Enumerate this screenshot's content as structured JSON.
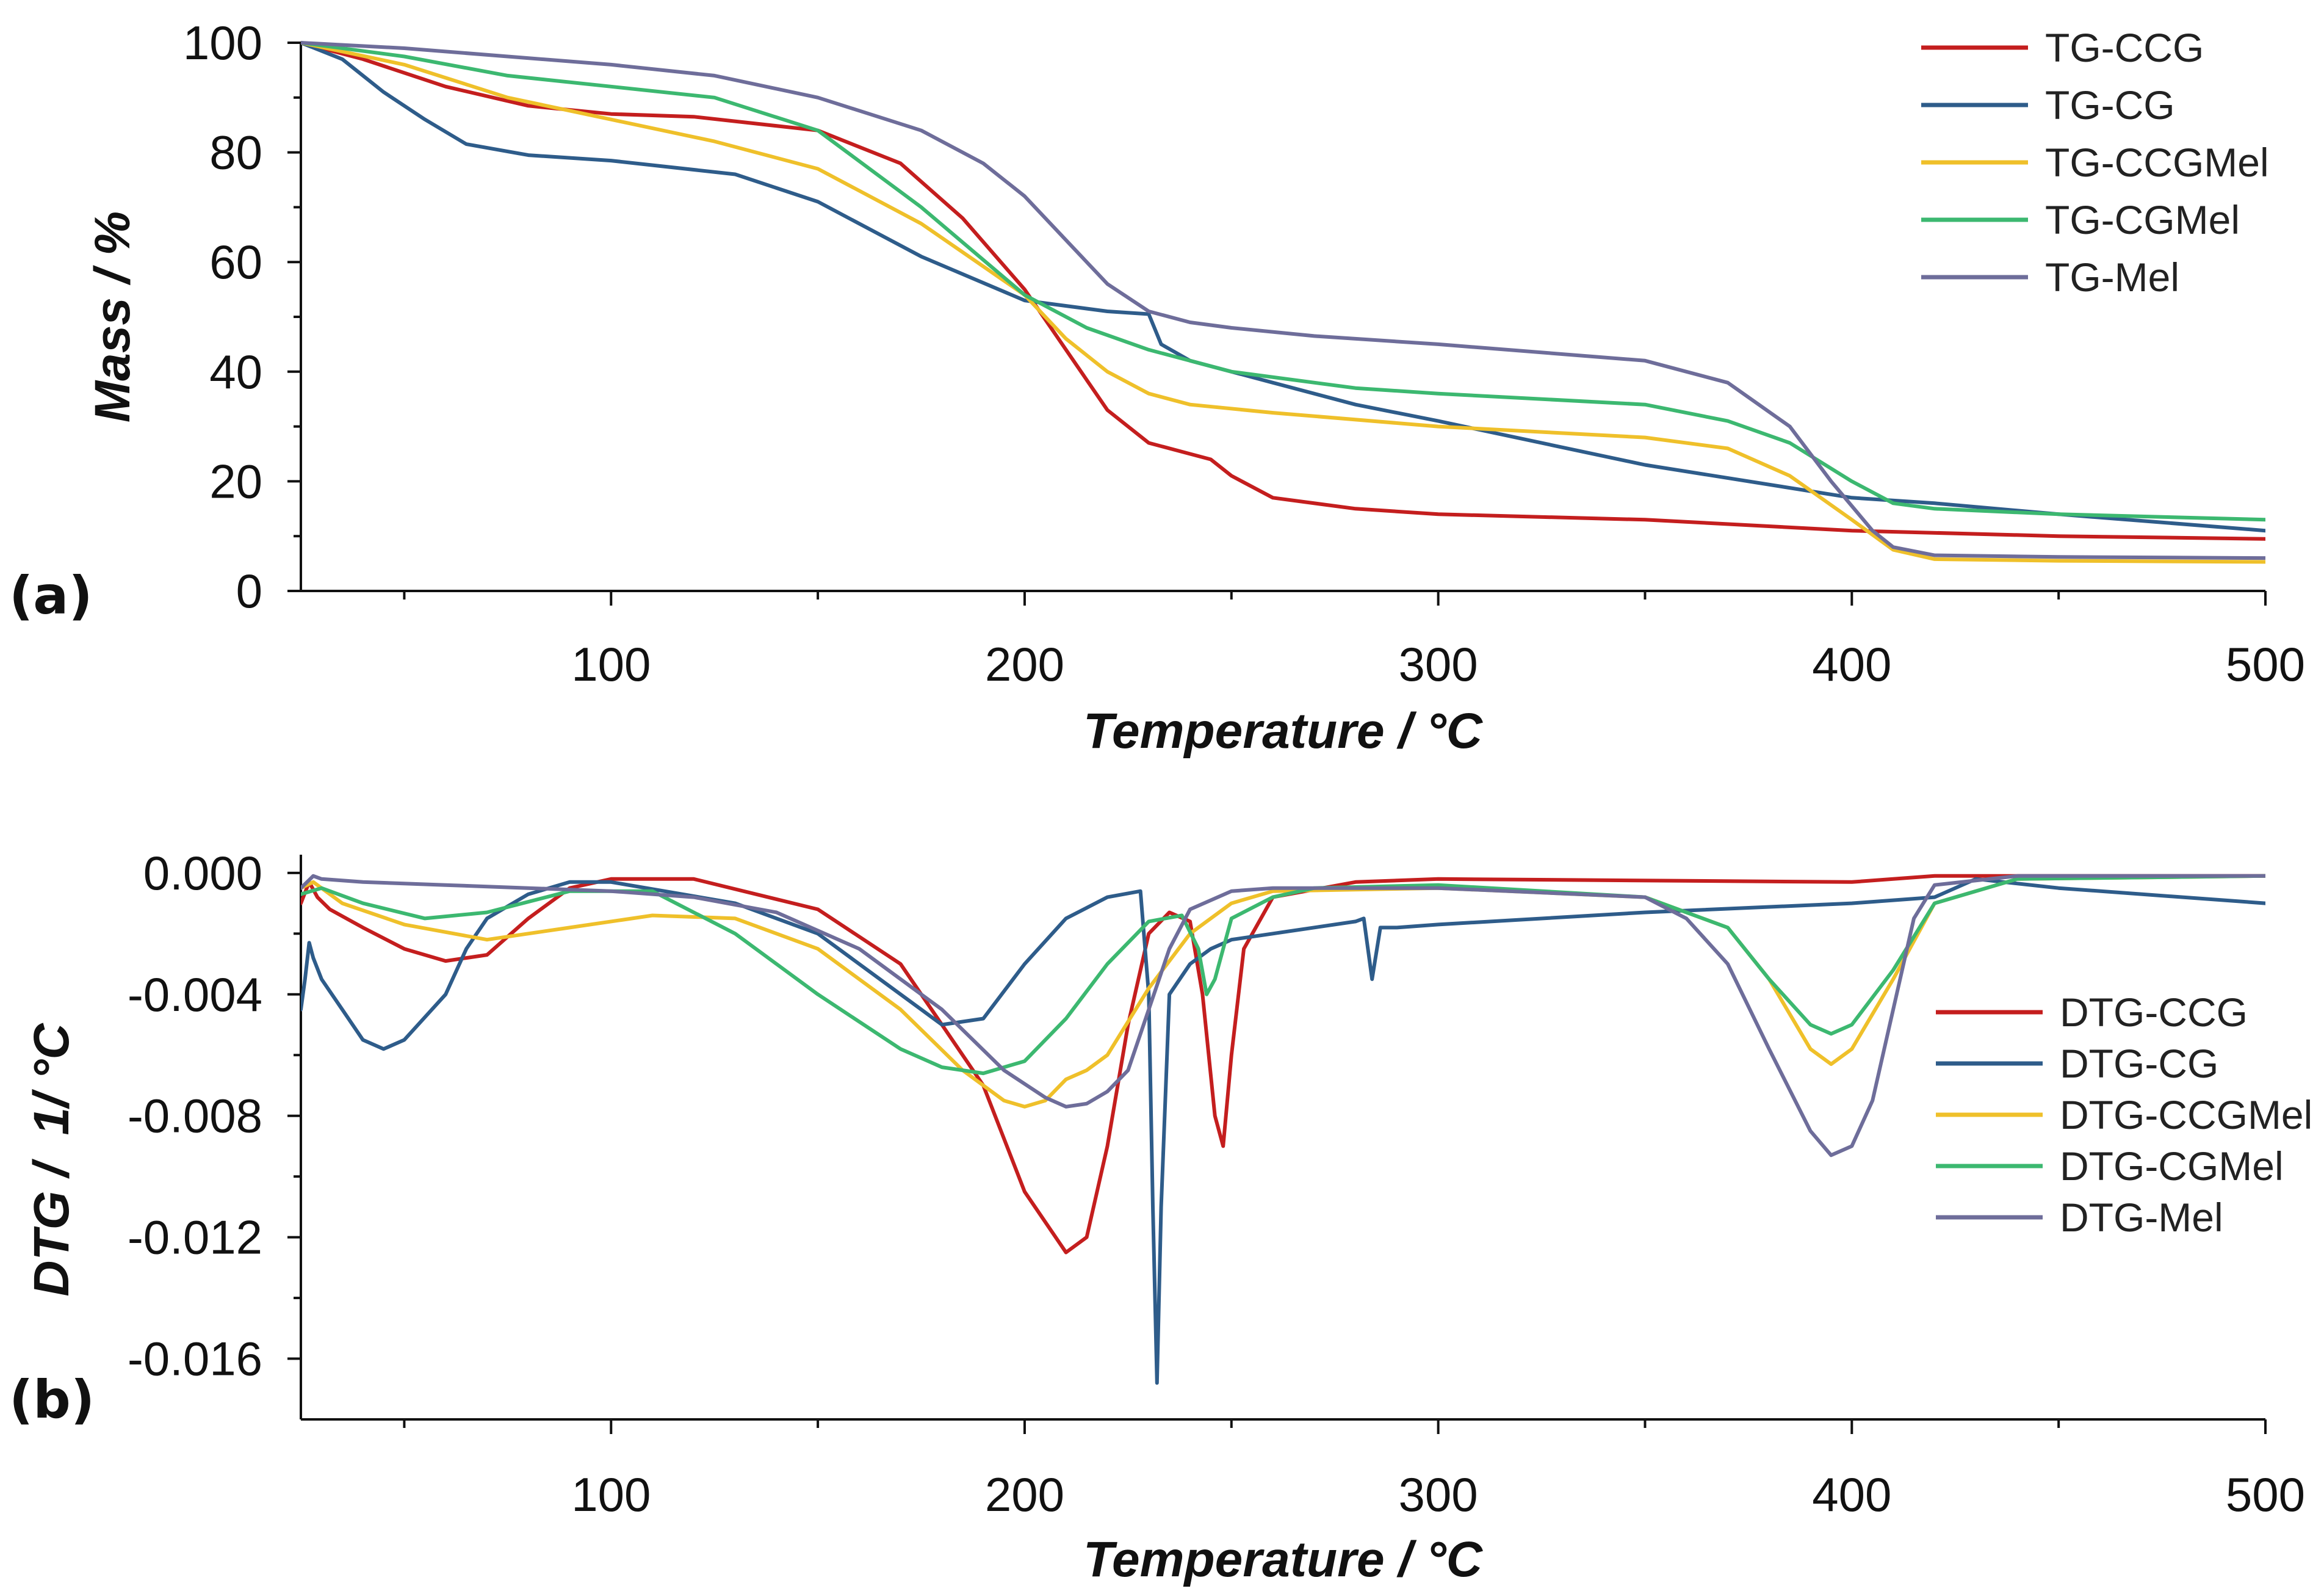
{
  "chart_data": [
    {
      "type": "line",
      "panel_label": "(a)",
      "xlabel": "Temperature / °C",
      "ylabel": "Mass / %",
      "xlim": [
        25,
        500
      ],
      "ylim": [
        0,
        100
      ],
      "xticks": [
        100,
        200,
        300,
        400,
        500
      ],
      "yticks": [
        0,
        20,
        40,
        60,
        80,
        100
      ],
      "legend_position": "top-right",
      "series": [
        {
          "name": "TG-CCG",
          "color": "#c41e1e",
          "x": [
            25,
            40,
            60,
            80,
            100,
            120,
            150,
            170,
            185,
            200,
            210,
            220,
            230,
            240,
            245,
            250,
            260,
            280,
            300,
            350,
            400,
            450,
            500
          ],
          "y": [
            100,
            97,
            92,
            88.5,
            87,
            86.5,
            84,
            78,
            68,
            55,
            44,
            33,
            27,
            25,
            24,
            21,
            17,
            15,
            14,
            13,
            11,
            10,
            9.5
          ]
        },
        {
          "name": "TG-CG",
          "color": "#2e5c8a",
          "x": [
            25,
            35,
            45,
            55,
            65,
            80,
            100,
            130,
            150,
            175,
            200,
            220,
            230,
            233,
            240,
            260,
            280,
            300,
            350,
            400,
            420,
            450,
            500
          ],
          "y": [
            100,
            97,
            91,
            86,
            81.5,
            79.5,
            78.5,
            76,
            71,
            61,
            53,
            51,
            50.5,
            45,
            42,
            38,
            34,
            31,
            23,
            17,
            16,
            14,
            11
          ]
        },
        {
          "name": "TG-CCGMel",
          "color": "#efc02a",
          "x": [
            25,
            50,
            75,
            100,
            125,
            150,
            175,
            200,
            210,
            220,
            230,
            240,
            260,
            300,
            350,
            370,
            385,
            400,
            410,
            420,
            450,
            500
          ],
          "y": [
            100,
            96,
            90,
            86,
            82,
            77,
            67,
            54,
            46,
            40,
            36,
            34,
            32.5,
            30,
            28,
            26,
            21,
            13,
            7.5,
            5.8,
            5.5,
            5.3
          ]
        },
        {
          "name": "TG-CGMel",
          "color": "#3cb870",
          "x": [
            25,
            50,
            75,
            100,
            125,
            150,
            175,
            200,
            215,
            230,
            250,
            280,
            300,
            350,
            370,
            385,
            400,
            410,
            420,
            450,
            500
          ],
          "y": [
            100,
            97.5,
            94,
            92,
            90,
            84,
            70,
            54,
            48,
            44,
            40,
            37,
            36,
            34,
            31,
            27,
            20,
            16,
            15,
            14,
            13
          ]
        },
        {
          "name": "TG-Mel",
          "color": "#6e6d9a",
          "x": [
            25,
            50,
            75,
            100,
            125,
            150,
            175,
            190,
            200,
            210,
            220,
            230,
            240,
            250,
            270,
            300,
            350,
            370,
            385,
            395,
            405,
            410,
            420,
            450,
            500
          ],
          "y": [
            100,
            99,
            97.5,
            96,
            94,
            90,
            84,
            78,
            72,
            64,
            56,
            51,
            49,
            48,
            46.5,
            45,
            42,
            38,
            30,
            20,
            11,
            8,
            6.5,
            6.2,
            6
          ]
        }
      ]
    },
    {
      "type": "line",
      "panel_label": "(b)",
      "xlabel": "Temperature / °C",
      "ylabel": "DTG /  1/ °C",
      "xlim": [
        25,
        500
      ],
      "ylim": [
        -0.018,
        0.0006
      ],
      "xticks": [
        100,
        200,
        300,
        400,
        500
      ],
      "yticks": [
        0.0,
        -0.004,
        -0.008,
        -0.012,
        -0.016
      ],
      "ytick_labels": [
        "0.000",
        "-0.004",
        "-0.008",
        "-0.012",
        "-0.016"
      ],
      "legend_position": "right",
      "series": [
        {
          "name": "DTG-CCG",
          "color": "#c41e1e",
          "x": [
            25,
            27,
            29,
            32,
            40,
            50,
            60,
            70,
            80,
            90,
            100,
            120,
            150,
            170,
            190,
            200,
            210,
            215,
            220,
            225,
            230,
            235,
            240,
            243,
            246,
            248,
            250,
            253,
            260,
            280,
            300,
            400,
            420,
            500
          ],
          "y": [
            -0.001,
            -0.0003,
            -0.0008,
            -0.0012,
            -0.0018,
            -0.0025,
            -0.0029,
            -0.0027,
            -0.0015,
            -0.0005,
            -0.0002,
            -0.0002,
            -0.0012,
            -0.003,
            -0.007,
            -0.0105,
            -0.0125,
            -0.012,
            -0.009,
            -0.005,
            -0.002,
            -0.0013,
            -0.0016,
            -0.004,
            -0.008,
            -0.009,
            -0.006,
            -0.0025,
            -0.0008,
            -0.0003,
            -0.0002,
            -0.0003,
            -0.0001,
            -0.0001
          ]
        },
        {
          "name": "DTG-CG",
          "color": "#2e5c8a",
          "x": [
            25,
            26,
            27,
            28,
            30,
            35,
            40,
            45,
            50,
            60,
            65,
            70,
            80,
            90,
            100,
            130,
            150,
            165,
            175,
            180,
            190,
            200,
            210,
            220,
            228,
            230,
            231,
            232,
            233,
            235,
            240,
            245,
            250,
            260,
            280,
            282,
            284,
            286,
            290,
            300,
            350,
            400,
            420,
            430,
            450,
            500
          ],
          "y": [
            -0.0045,
            -0.0035,
            -0.0023,
            -0.0028,
            -0.0035,
            -0.0045,
            -0.0055,
            -0.0058,
            -0.0055,
            -0.004,
            -0.0025,
            -0.0015,
            -0.0007,
            -0.0003,
            -0.0003,
            -0.001,
            -0.002,
            -0.0035,
            -0.0045,
            -0.005,
            -0.0048,
            -0.003,
            -0.0015,
            -0.0008,
            -0.0006,
            -0.004,
            -0.011,
            -0.0168,
            -0.011,
            -0.004,
            -0.003,
            -0.0025,
            -0.0022,
            -0.002,
            -0.0016,
            -0.0015,
            -0.0035,
            -0.0018,
            -0.0018,
            -0.0017,
            -0.0013,
            -0.001,
            -0.0008,
            -0.0002,
            -0.0005,
            -0.001
          ]
        },
        {
          "name": "DTG-CCGMel",
          "color": "#efc02a",
          "x": [
            25,
            28,
            35,
            50,
            70,
            90,
            110,
            130,
            150,
            170,
            185,
            195,
            200,
            205,
            210,
            215,
            220,
            230,
            240,
            250,
            260,
            300,
            350,
            370,
            380,
            390,
            395,
            400,
            410,
            420,
            440,
            500
          ],
          "y": [
            -0.0005,
            -0.0003,
            -0.001,
            -0.0017,
            -0.0022,
            -0.0018,
            -0.0014,
            -0.0015,
            -0.0025,
            -0.0045,
            -0.0065,
            -0.0075,
            -0.0077,
            -0.0075,
            -0.0068,
            -0.0065,
            -0.006,
            -0.0038,
            -0.002,
            -0.001,
            -0.0006,
            -0.0005,
            -0.0008,
            -0.0018,
            -0.0035,
            -0.0058,
            -0.0063,
            -0.0058,
            -0.0035,
            -0.001,
            -0.0002,
            -0.0001
          ]
        },
        {
          "name": "DTG-CGMel",
          "color": "#3cb870",
          "x": [
            25,
            30,
            40,
            55,
            70,
            90,
            110,
            130,
            150,
            170,
            180,
            190,
            200,
            210,
            220,
            230,
            238,
            242,
            244,
            246,
            250,
            260,
            270,
            300,
            350,
            370,
            380,
            390,
            395,
            400,
            410,
            420,
            440,
            500
          ],
          "y": [
            -0.0007,
            -0.0005,
            -0.001,
            -0.0015,
            -0.0013,
            -0.0006,
            -0.0006,
            -0.002,
            -0.004,
            -0.0058,
            -0.0064,
            -0.0066,
            -0.0062,
            -0.0048,
            -0.003,
            -0.0016,
            -0.0014,
            -0.0025,
            -0.004,
            -0.0035,
            -0.0015,
            -0.0008,
            -0.0005,
            -0.0004,
            -0.0008,
            -0.0018,
            -0.0035,
            -0.005,
            -0.0053,
            -0.005,
            -0.0032,
            -0.001,
            -0.0002,
            -0.0001
          ]
        },
        {
          "name": "DTG-Mel",
          "color": "#6e6d9a",
          "x": [
            25,
            28,
            30,
            40,
            60,
            80,
            100,
            120,
            140,
            160,
            180,
            195,
            205,
            210,
            215,
            220,
            225,
            230,
            235,
            240,
            250,
            260,
            300,
            350,
            360,
            370,
            380,
            390,
            395,
            400,
            405,
            410,
            415,
            420,
            440,
            500
          ],
          "y": [
            -0.0005,
            -0.0001,
            -0.0002,
            -0.0003,
            -0.0004,
            -0.0005,
            -0.0006,
            -0.0008,
            -0.0013,
            -0.0025,
            -0.0045,
            -0.0065,
            -0.0074,
            -0.0077,
            -0.0076,
            -0.0072,
            -0.0065,
            -0.0045,
            -0.0025,
            -0.0012,
            -0.0006,
            -0.0005,
            -0.0005,
            -0.0008,
            -0.0015,
            -0.003,
            -0.0058,
            -0.0085,
            -0.0093,
            -0.009,
            -0.0075,
            -0.0045,
            -0.0015,
            -0.0004,
            -0.0001,
            -0.0001
          ]
        }
      ]
    }
  ]
}
